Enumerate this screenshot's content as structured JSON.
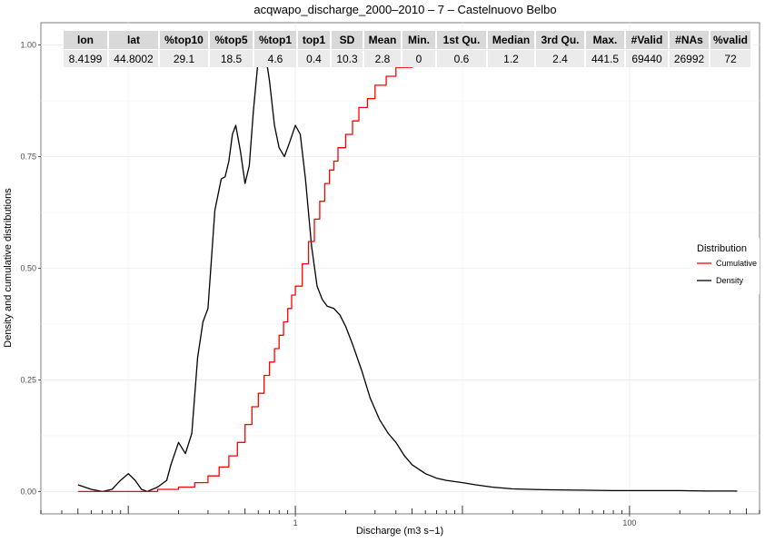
{
  "chart_data": {
    "type": "line",
    "title": "acqwapo_discharge_2000–2010 – 7 – Castelnuovo Belbo",
    "xlabel": "Discharge (m3 s−1)",
    "ylabel": "Density and cumulative distributions",
    "x_scale": "log10",
    "xlim": [
      0.03,
      600
    ],
    "ylim": [
      -0.05,
      1.05
    ],
    "x_tick_labels": [
      "1",
      "100"
    ],
    "x_tick_values": [
      1,
      100
    ],
    "y_tick_labels": [
      "0.00",
      "0.25",
      "0.50",
      "0.75",
      "1.00"
    ],
    "y_tick_values": [
      0,
      0.25,
      0.5,
      0.75,
      1.0
    ],
    "grid": true,
    "legend": {
      "title": "Distribution",
      "placement": "right",
      "entries": [
        {
          "name": "Cumulative",
          "color": "#ff0000"
        },
        {
          "name": "Density",
          "color": "#000000"
        }
      ]
    },
    "series": [
      {
        "name": "Density",
        "color": "#000000",
        "x": [
          0.05,
          0.06,
          0.07,
          0.08,
          0.09,
          0.1,
          0.11,
          0.12,
          0.13,
          0.15,
          0.17,
          0.18,
          0.2,
          0.22,
          0.24,
          0.26,
          0.28,
          0.3,
          0.33,
          0.36,
          0.38,
          0.4,
          0.42,
          0.44,
          0.47,
          0.5,
          0.53,
          0.56,
          0.6,
          0.65,
          0.7,
          0.75,
          0.8,
          0.86,
          0.92,
          1.0,
          1.07,
          1.15,
          1.25,
          1.35,
          1.45,
          1.55,
          1.7,
          1.85,
          2.0,
          2.2,
          2.5,
          2.8,
          3.2,
          3.6,
          4.0,
          4.5,
          5.0,
          6.0,
          7.0,
          8.0,
          10.0,
          12.0,
          15.0,
          20.0,
          30.0,
          50.0,
          80.0,
          120.0,
          200.0,
          300.0,
          400.0,
          441.5
        ],
        "y": [
          0.015,
          0.005,
          0.0,
          0.005,
          0.025,
          0.04,
          0.025,
          0.005,
          0.0,
          0.01,
          0.025,
          0.06,
          0.11,
          0.085,
          0.13,
          0.3,
          0.38,
          0.41,
          0.63,
          0.7,
          0.705,
          0.74,
          0.8,
          0.82,
          0.76,
          0.69,
          0.73,
          0.85,
          0.97,
          1.0,
          0.92,
          0.82,
          0.77,
          0.75,
          0.78,
          0.82,
          0.8,
          0.7,
          0.55,
          0.46,
          0.43,
          0.415,
          0.41,
          0.395,
          0.37,
          0.33,
          0.27,
          0.21,
          0.16,
          0.13,
          0.11,
          0.08,
          0.06,
          0.04,
          0.03,
          0.025,
          0.02,
          0.015,
          0.01,
          0.006,
          0.004,
          0.003,
          0.002,
          0.002,
          0.002,
          0.001,
          0.001,
          0.001
        ]
      },
      {
        "name": "Cumulative",
        "color": "#ff0000",
        "step": true,
        "x": [
          0.05,
          0.1,
          0.15,
          0.2,
          0.25,
          0.3,
          0.35,
          0.4,
          0.45,
          0.5,
          0.55,
          0.6,
          0.65,
          0.7,
          0.75,
          0.8,
          0.85,
          0.9,
          0.95,
          1.0,
          1.1,
          1.2,
          1.3,
          1.4,
          1.5,
          1.6,
          1.7,
          1.8,
          2.0,
          2.2,
          2.4,
          2.7,
          3.0,
          3.5,
          4.0,
          5.0,
          6.0,
          8.0,
          10.0,
          15.0,
          20.0,
          30.0,
          50.0,
          100.0,
          200.0,
          441.5
        ],
        "y": [
          0.0,
          0.0,
          0.005,
          0.01,
          0.02,
          0.035,
          0.055,
          0.08,
          0.11,
          0.15,
          0.19,
          0.22,
          0.26,
          0.29,
          0.32,
          0.35,
          0.38,
          0.41,
          0.44,
          0.46,
          0.51,
          0.56,
          0.61,
          0.65,
          0.69,
          0.72,
          0.74,
          0.77,
          0.8,
          0.83,
          0.86,
          0.88,
          0.91,
          0.93,
          0.95,
          0.965,
          0.975,
          0.985,
          0.99,
          0.995,
          0.997,
          0.998,
          0.999,
          0.9995,
          1.0,
          1.0
        ]
      }
    ]
  },
  "stats_table": {
    "headers": [
      "lon",
      "lat",
      "%top10",
      "%top5",
      "%top1",
      "top1",
      "SD",
      "Mean",
      "Min.",
      "1st Qu.",
      "Median",
      "3rd Qu.",
      "Max.",
      "#Valid",
      "#NAs",
      "%valid"
    ],
    "values": [
      "8.4199",
      "44.8002",
      "29.1",
      "18.5",
      "4.6",
      "0.4",
      "10.3",
      "2.8",
      "0",
      "0.6",
      "1.2",
      "2.4",
      "441.5",
      "69440",
      "26992",
      "72"
    ]
  }
}
